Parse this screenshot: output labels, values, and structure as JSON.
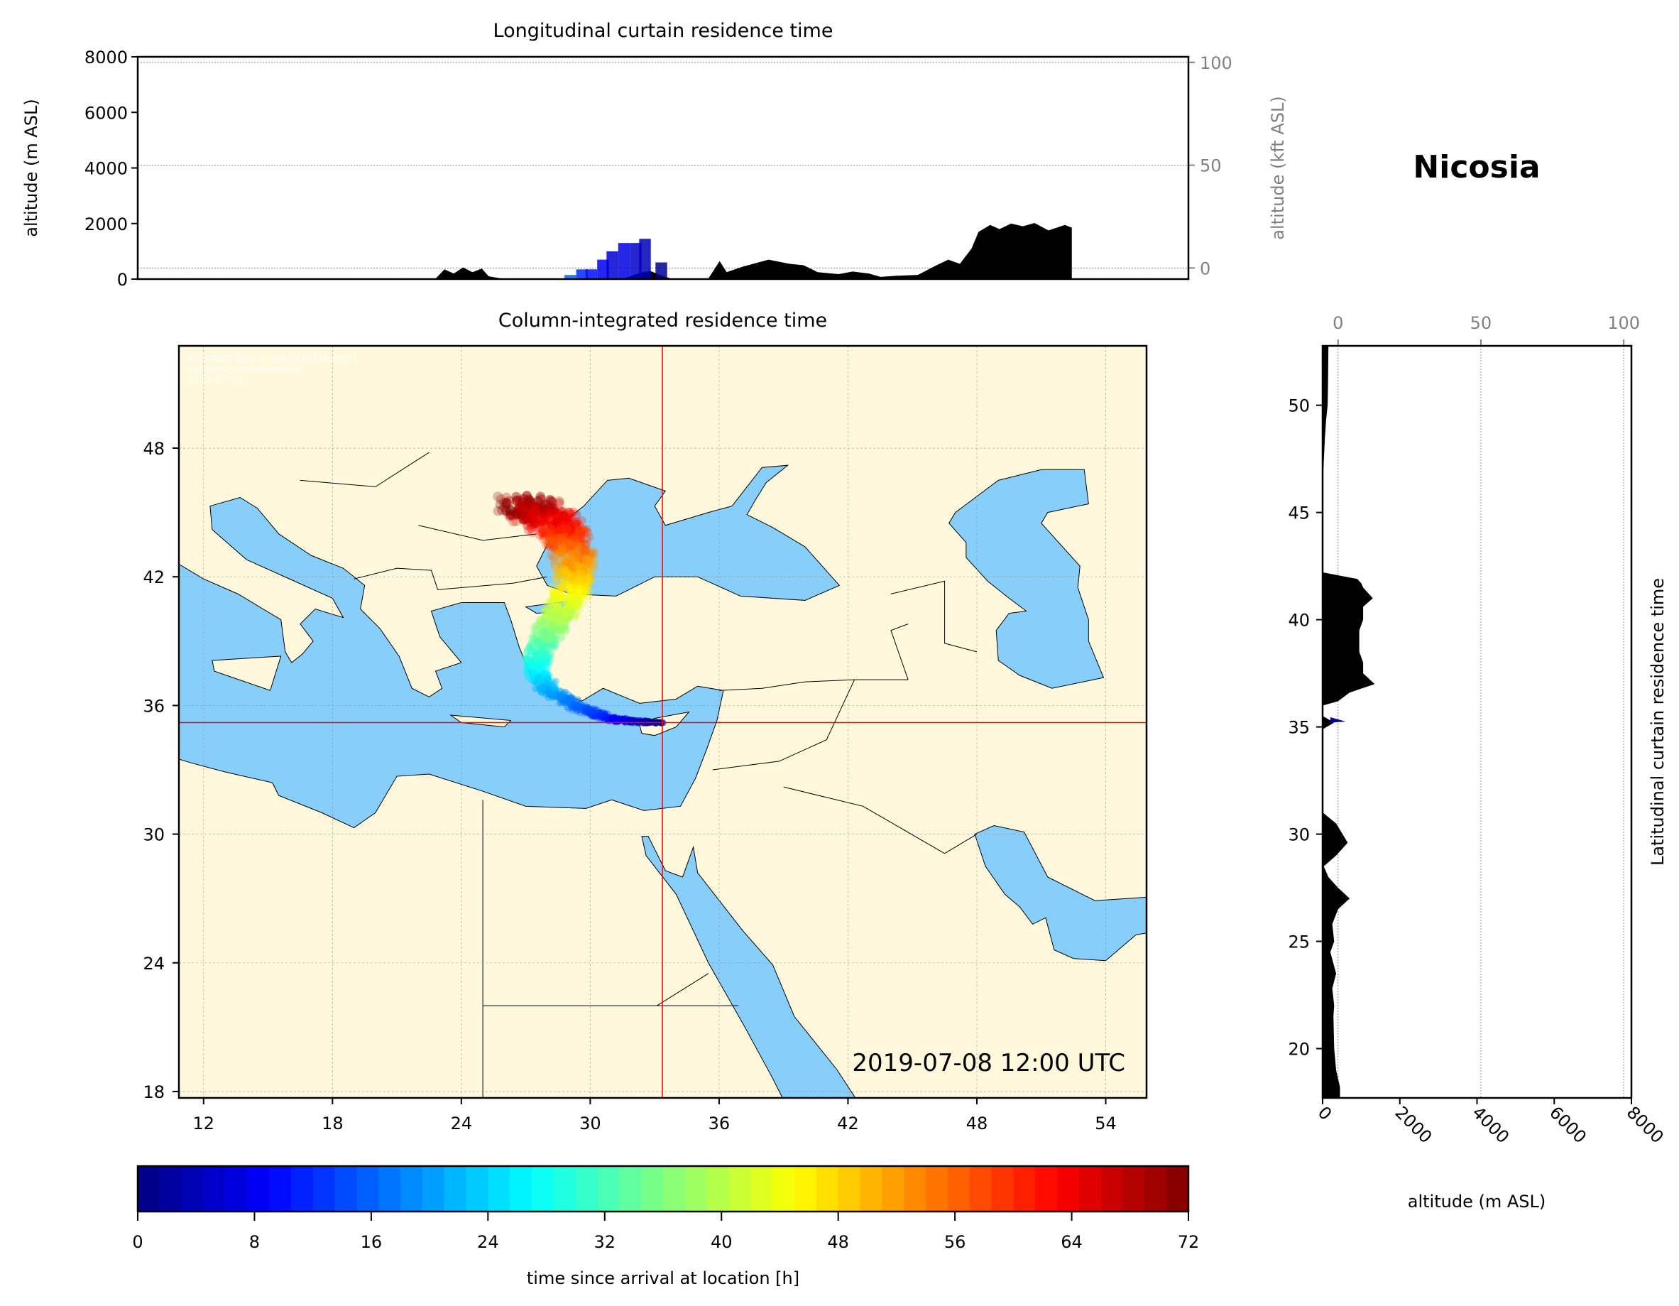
{
  "colors": {
    "land": "#fff8dc",
    "sea": "#87cefa",
    "terrain": "#000000",
    "crosshair": "#ff0000",
    "grid": "#888888",
    "secondary_axis": "#808080"
  },
  "station_title": "Nicosia",
  "watermark": [
    "FLEXPART-WRF at MIM (LMU Munich)",
    "christoph.knote@lmu.de",
    "2019-07-10"
  ],
  "chart_data": [
    {
      "id": "longitudinal",
      "type": "area",
      "title": "Longitudinal curtain residence time",
      "xlabel": "",
      "ylabel": "altitude (m ASL)",
      "ylabel_right": "altitude (kft ASL)",
      "xlim": [
        10.85,
        55.9
      ],
      "ylim": [
        0,
        8000
      ],
      "yticks": [
        0,
        2000,
        4000,
        6000,
        8000
      ],
      "yticks_right": [
        0,
        50,
        100
      ],
      "grid": true,
      "terrain": [
        [
          23.6,
          0
        ],
        [
          24.0,
          350
        ],
        [
          24.4,
          200
        ],
        [
          24.8,
          420
        ],
        [
          25.2,
          250
        ],
        [
          25.6,
          380
        ],
        [
          25.9,
          100
        ],
        [
          26.4,
          30
        ],
        [
          26.8,
          0
        ],
        [
          31.6,
          0
        ],
        [
          32.3,
          200
        ],
        [
          32.8,
          300
        ],
        [
          33.4,
          100
        ],
        [
          33.8,
          0
        ],
        [
          35.3,
          0
        ],
        [
          35.8,
          650
        ],
        [
          36.1,
          250
        ],
        [
          36.8,
          450
        ],
        [
          37.9,
          700
        ],
        [
          38.8,
          550
        ],
        [
          39.4,
          500
        ],
        [
          40.0,
          250
        ],
        [
          40.9,
          180
        ],
        [
          41.5,
          270
        ],
        [
          42.2,
          200
        ],
        [
          42.7,
          80
        ],
        [
          43.4,
          120
        ],
        [
          44.3,
          150
        ],
        [
          45.1,
          500
        ],
        [
          45.6,
          700
        ],
        [
          46.1,
          550
        ],
        [
          46.6,
          1100
        ],
        [
          46.9,
          1700
        ],
        [
          47.4,
          1950
        ],
        [
          47.8,
          1800
        ],
        [
          48.3,
          2000
        ],
        [
          48.8,
          1900
        ],
        [
          49.3,
          2020
        ],
        [
          49.9,
          1750
        ],
        [
          50.6,
          1950
        ],
        [
          50.9,
          1850
        ],
        [
          50.9,
          0
        ]
      ],
      "plume": [
        {
          "lon": 29.4,
          "top": 150,
          "time_h": 16
        },
        {
          "lon": 29.9,
          "top": 350,
          "time_h": 12
        },
        {
          "lon": 30.3,
          "top": 350,
          "time_h": 10
        },
        {
          "lon": 30.8,
          "top": 700,
          "time_h": 8
        },
        {
          "lon": 31.2,
          "top": 1000,
          "time_h": 6
        },
        {
          "lon": 31.7,
          "top": 1300,
          "time_h": 7
        },
        {
          "lon": 32.2,
          "top": 1300,
          "time_h": 5
        },
        {
          "lon": 32.6,
          "top": 1450,
          "time_h": 4
        },
        {
          "lon": 33.3,
          "top": 600,
          "time_h": 1
        }
      ]
    },
    {
      "id": "map",
      "type": "scatter",
      "title": "Column-integrated residence time",
      "timestamp": "2019-07-08 12:00 UTC",
      "xlim": [
        10.85,
        55.9
      ],
      "ylim": [
        17.7,
        52.77
      ],
      "xticks": [
        12,
        18,
        24,
        30,
        36,
        42,
        48,
        54
      ],
      "yticks": [
        18,
        24,
        30,
        36,
        42,
        48
      ],
      "location": {
        "lon": 33.36,
        "lat": 35.2
      },
      "trajectory_path": [
        [
          33.3,
          35.2
        ],
        [
          32.0,
          35.25
        ],
        [
          30.8,
          35.4
        ],
        [
          29.5,
          35.9
        ],
        [
          28.2,
          36.6
        ],
        [
          27.5,
          37.5
        ],
        [
          27.6,
          38.5
        ],
        [
          28.1,
          39.5
        ],
        [
          28.7,
          40.5
        ],
        [
          29.2,
          41.5
        ],
        [
          29.3,
          42.5
        ],
        [
          29.1,
          43.5
        ],
        [
          28.6,
          44.3
        ],
        [
          27.6,
          45.0
        ],
        [
          26.8,
          45.5
        ]
      ],
      "time_range_h": [
        0,
        72
      ]
    },
    {
      "id": "latitudinal",
      "type": "area",
      "title": "Latitudinal curtain residence time",
      "xlabel": "altitude (m ASL)",
      "xlim": [
        0,
        8000
      ],
      "ylim": [
        17.7,
        52.77
      ],
      "xticks": [
        0,
        2000,
        4000,
        6000,
        8000
      ],
      "xticks_top": [
        0,
        50,
        100
      ],
      "yticks": [
        20,
        25,
        30,
        35,
        40,
        45,
        50
      ],
      "grid": true,
      "terrain": [
        [
          52.77,
          150
        ],
        [
          51,
          140
        ],
        [
          50,
          130
        ],
        [
          49.3,
          90
        ],
        [
          48.5,
          60
        ],
        [
          47,
          20
        ],
        [
          45,
          10
        ],
        [
          42.2,
          20
        ],
        [
          41.9,
          900
        ],
        [
          41.7,
          1000
        ],
        [
          41.5,
          1050
        ],
        [
          41,
          1300
        ],
        [
          40.6,
          1050
        ],
        [
          40,
          1050
        ],
        [
          39.5,
          950
        ],
        [
          38.5,
          950
        ],
        [
          38,
          1050
        ],
        [
          37.5,
          1050
        ],
        [
          37,
          1350
        ],
        [
          36.6,
          700
        ],
        [
          36.2,
          400
        ],
        [
          36,
          10
        ],
        [
          35.5,
          10
        ],
        [
          35.2,
          300
        ],
        [
          34.9,
          10
        ],
        [
          31,
          10
        ],
        [
          30.5,
          350
        ],
        [
          29.6,
          650
        ],
        [
          29,
          350
        ],
        [
          28.5,
          30
        ],
        [
          28,
          150
        ],
        [
          27.5,
          400
        ],
        [
          27,
          700
        ],
        [
          26.5,
          400
        ],
        [
          25.8,
          250
        ],
        [
          25,
          300
        ],
        [
          24.5,
          200
        ],
        [
          23.5,
          350
        ],
        [
          22.8,
          250
        ],
        [
          22,
          300
        ],
        [
          21.5,
          280
        ],
        [
          20,
          300
        ],
        [
          19,
          350
        ],
        [
          18.2,
          450
        ],
        [
          17.7,
          450
        ]
      ],
      "plume": [
        {
          "lat": 35.25,
          "right": 600,
          "time_h": 2
        }
      ]
    },
    {
      "id": "colorbar",
      "type": "heatmap",
      "label": "time since arrival at location [h]",
      "range": [
        0,
        72
      ],
      "ticks": [
        0,
        8,
        16,
        24,
        32,
        40,
        48,
        56,
        64,
        72
      ],
      "levels": 48,
      "colormap": "jet"
    }
  ],
  "kft_to_m": {
    "offset_m": 400,
    "m_per_kft": 74
  }
}
